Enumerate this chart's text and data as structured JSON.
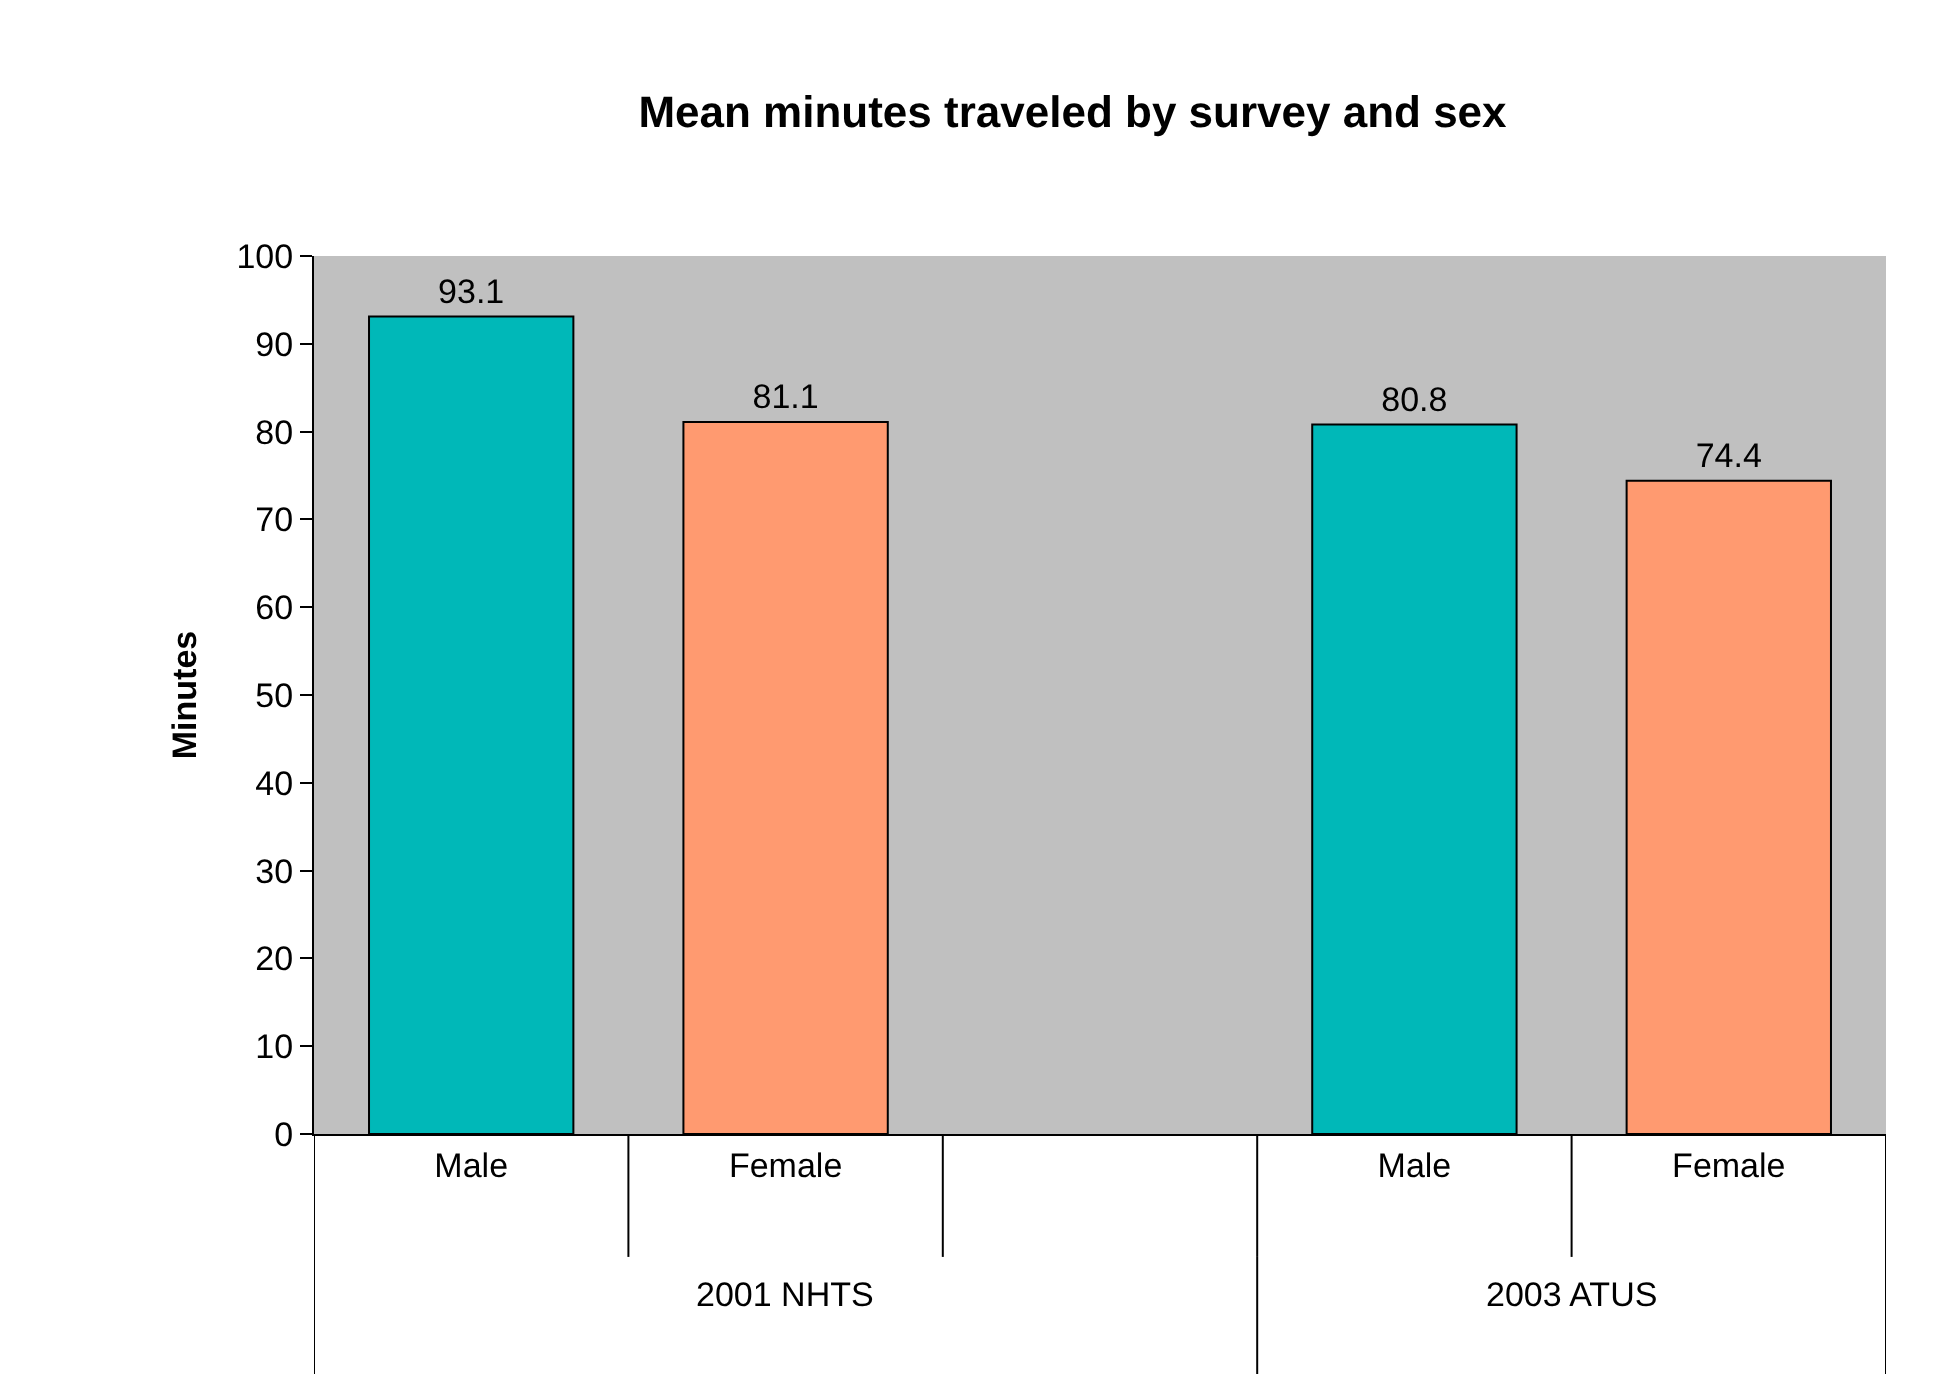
{
  "chart_data": {
    "type": "bar",
    "title": "Mean minutes traveled by survey and sex",
    "ylabel": "Minutes",
    "categories": [
      "Male",
      "Female",
      null,
      "Male",
      "Female"
    ],
    "values": [
      93.1,
      81.1,
      null,
      80.8,
      74.4
    ],
    "colors": [
      "#00b8b8",
      "#ff9a70",
      null,
      "#00b8b8",
      "#ff9a70"
    ],
    "ylim": [
      0,
      100
    ],
    "yticks": [
      0,
      10,
      20,
      30,
      40,
      50,
      60,
      70,
      80,
      90,
      100
    ],
    "data_labels": true,
    "annotations": [
      "2001 NHTS",
      "2003 ATUS"
    ]
  }
}
